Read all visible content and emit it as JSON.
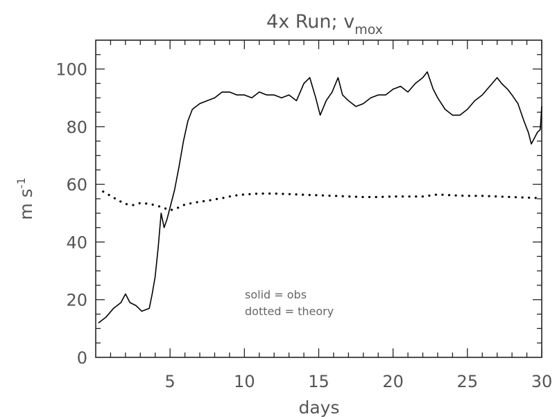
{
  "chart_data": {
    "type": "line",
    "title": {
      "main": "4x Run; v",
      "subscript": "mox"
    },
    "xlabel": "days",
    "ylabel": {
      "main": "m s",
      "superscript": "-1"
    },
    "xlim": [
      0,
      30
    ],
    "ylim": [
      0,
      110
    ],
    "xticks": [
      5,
      10,
      15,
      20,
      25,
      30
    ],
    "xtick_labels": [
      "5",
      "10",
      "15",
      "20",
      "25",
      "30"
    ],
    "yticks": [
      0,
      20,
      40,
      60,
      80,
      100
    ],
    "ytick_labels": [
      "0",
      "20",
      "40",
      "60",
      "80",
      "100"
    ],
    "grid": false,
    "annotations": [
      "solid = obs",
      "dotted = theory"
    ],
    "series": [
      {
        "name": "obs",
        "style": "solid",
        "color": "#000000",
        "x": [
          0.2,
          0.7,
          1.2,
          1.7,
          2.0,
          2.3,
          2.7,
          3.1,
          3.6,
          3.8,
          4.0,
          4.2,
          4.4,
          4.6,
          4.8,
          5.0,
          5.3,
          5.6,
          5.9,
          6.2,
          6.5,
          7.0,
          7.5,
          8.0,
          8.5,
          9.0,
          9.5,
          10.0,
          10.5,
          11.0,
          11.5,
          12.0,
          12.5,
          13.0,
          13.5,
          14.0,
          14.4,
          14.8,
          15.1,
          15.5,
          15.9,
          16.3,
          16.6,
          17.0,
          17.5,
          18.0,
          18.5,
          19.0,
          19.5,
          20.0,
          20.5,
          21.0,
          21.5,
          22.0,
          22.3,
          22.7,
          23.0,
          23.5,
          24.0,
          24.5,
          25.0,
          25.5,
          26.0,
          26.5,
          27.0,
          27.3,
          27.7,
          28.0,
          28.4,
          28.8,
          29.1,
          29.3,
          29.5,
          29.7,
          29.9,
          30.0
        ],
        "y": [
          12,
          14,
          17,
          19,
          22,
          19,
          18,
          16,
          17,
          22,
          28,
          38,
          50,
          45,
          48,
          52,
          58,
          66,
          75,
          82,
          86,
          88,
          89,
          90,
          92,
          92,
          91,
          91,
          90,
          92,
          91,
          91,
          90,
          91,
          89,
          95,
          97,
          90,
          84,
          89,
          92,
          97,
          91,
          89,
          87,
          88,
          90,
          91,
          91,
          93,
          94,
          92,
          95,
          97,
          99,
          93,
          90,
          86,
          84,
          84,
          86,
          89,
          91,
          94,
          97,
          95,
          93,
          91,
          88,
          82,
          78,
          74,
          76,
          78,
          79,
          87
        ]
      },
      {
        "name": "theory",
        "style": "dotted",
        "color": "#000000",
        "x": [
          0.5,
          1.0,
          1.5,
          2.0,
          2.5,
          3.0,
          3.5,
          4.0,
          4.5,
          5.0,
          5.5,
          6.0,
          6.5,
          7.0,
          7.5,
          8.0,
          8.5,
          9.0,
          9.5,
          10.0,
          11.0,
          12.0,
          13.0,
          14.0,
          15.0,
          16.0,
          17.0,
          18.0,
          19.0,
          20.0,
          21.0,
          22.0,
          23.0,
          24.0,
          25.0,
          26.0,
          27.0,
          28.0,
          29.0,
          30.0
        ],
        "y": [
          57.5,
          56,
          54.5,
          53.2,
          52.8,
          53.5,
          53.3,
          52.8,
          52,
          51,
          51.8,
          53,
          53.5,
          54,
          54.3,
          54.8,
          55.2,
          55.8,
          56.2,
          56.5,
          56.8,
          56.8,
          56.6,
          56.4,
          56.2,
          56,
          55.8,
          55.6,
          55.6,
          55.8,
          55.8,
          55.8,
          56.5,
          56.2,
          56,
          56,
          55.8,
          55.6,
          55.4,
          55.2
        ]
      }
    ]
  }
}
